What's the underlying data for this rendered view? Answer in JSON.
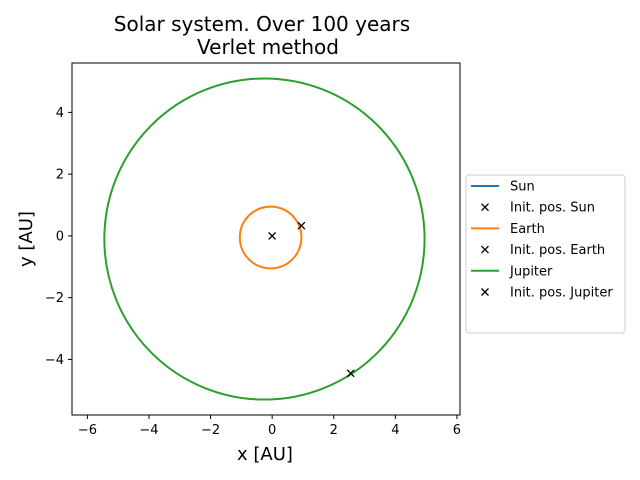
{
  "chart_data": {
    "type": "line",
    "title": "Solar system. Over 100 years",
    "subtitle": "Verlet method",
    "xlabel": "x [AU]",
    "ylabel": "y [AU]",
    "xlim": [
      -6.5,
      6.1
    ],
    "ylim": [
      -5.8,
      5.6
    ],
    "xticks": [
      -6,
      -4,
      -2,
      0,
      2,
      4,
      6
    ],
    "yticks": [
      -4,
      -2,
      0,
      2,
      4
    ],
    "xtick_labels": [
      "−6",
      "−4",
      "−2",
      "0",
      "2",
      "4",
      "6"
    ],
    "ytick_labels": [
      "−4",
      "−2",
      "0",
      "2",
      "4"
    ],
    "grid": false,
    "legend_position": "outside-right",
    "series": [
      {
        "name": "Sun",
        "kind": "orbit",
        "color": "#1f77b4",
        "center": [
          0,
          0
        ],
        "radius": 0.0
      },
      {
        "name": "Init. pos. Sun",
        "kind": "marker",
        "marker": "x",
        "color": "#000000",
        "point": [
          0.0,
          0.0
        ]
      },
      {
        "name": "Earth",
        "kind": "orbit",
        "color": "#ff7f0e",
        "center": [
          -0.05,
          -0.05
        ],
        "radius": 1.0
      },
      {
        "name": "Init. pos. Earth",
        "kind": "marker",
        "marker": "x",
        "color": "#000000",
        "point": [
          0.95,
          0.33
        ]
      },
      {
        "name": "Jupiter",
        "kind": "orbit",
        "color": "#2ca02c",
        "center": [
          -0.25,
          -0.1
        ],
        "radius": 5.2
      },
      {
        "name": "Init. pos. Jupiter",
        "kind": "marker",
        "marker": "x",
        "color": "#000000",
        "point": [
          2.55,
          -4.45
        ]
      }
    ]
  }
}
